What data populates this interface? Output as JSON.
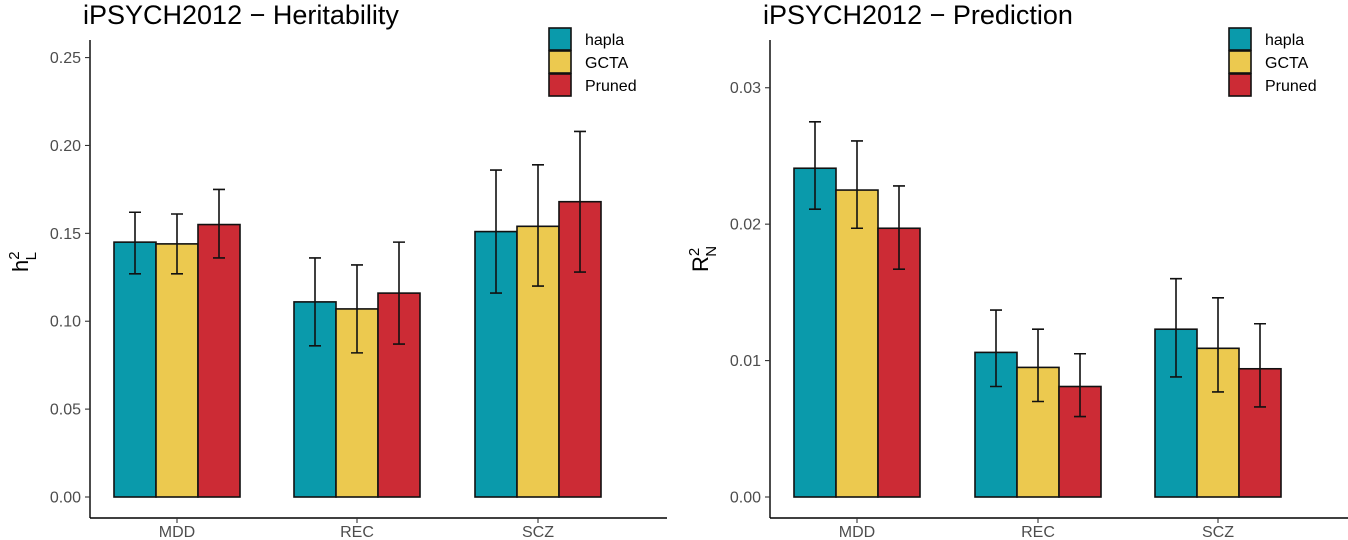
{
  "colors": {
    "hapla": "#0a9aab",
    "GCTA": "#ecc94f",
    "Pruned": "#cc2b35"
  },
  "legend": [
    "hapla",
    "GCTA",
    "Pruned"
  ],
  "chart_data": [
    {
      "type": "bar",
      "title": "iPSYCH2012 − Heritability",
      "ylabel_main": "h",
      "ylabel_sup": "2",
      "ylabel_sub": "L",
      "ylim": [
        0,
        0.26
      ],
      "yticks": [
        0,
        0.05,
        0.1,
        0.15,
        0.2,
        0.25
      ],
      "ytick_labels": [
        "0.00",
        "0.05",
        "0.10",
        "0.15",
        "0.20",
        "0.25"
      ],
      "categories": [
        "MDD",
        "REC",
        "SCZ"
      ],
      "series": [
        {
          "name": "hapla",
          "values": [
            0.145,
            0.111,
            0.151
          ],
          "lower": [
            0.127,
            0.086,
            0.116
          ],
          "upper": [
            0.162,
            0.136,
            0.186
          ]
        },
        {
          "name": "GCTA",
          "values": [
            0.144,
            0.107,
            0.154
          ],
          "lower": [
            0.127,
            0.082,
            0.12
          ],
          "upper": [
            0.161,
            0.132,
            0.189
          ]
        },
        {
          "name": "Pruned",
          "values": [
            0.155,
            0.116,
            0.168
          ],
          "lower": [
            0.136,
            0.087,
            0.128
          ],
          "upper": [
            0.175,
            0.145,
            0.208
          ]
        }
      ]
    },
    {
      "type": "bar",
      "title": "iPSYCH2012 − Prediction",
      "ylabel_main": "R",
      "ylabel_sup": "2",
      "ylabel_sub": "N",
      "ylim": [
        0,
        0.0335
      ],
      "yticks": [
        0,
        0.01,
        0.02,
        0.03
      ],
      "ytick_labels": [
        "0.00",
        "0.01",
        "0.02",
        "0.03"
      ],
      "categories": [
        "MDD",
        "REC",
        "SCZ"
      ],
      "series": [
        {
          "name": "hapla",
          "values": [
            0.0241,
            0.0106,
            0.0123
          ],
          "lower": [
            0.0211,
            0.0081,
            0.0088
          ],
          "upper": [
            0.0275,
            0.0137,
            0.016
          ]
        },
        {
          "name": "GCTA",
          "values": [
            0.0225,
            0.0095,
            0.0109
          ],
          "lower": [
            0.0197,
            0.007,
            0.0077
          ],
          "upper": [
            0.0261,
            0.0123,
            0.0146
          ]
        },
        {
          "name": "Pruned",
          "values": [
            0.0197,
            0.0081,
            0.0094
          ],
          "lower": [
            0.0167,
            0.0059,
            0.0066
          ],
          "upper": [
            0.0228,
            0.0105,
            0.0127
          ]
        }
      ]
    }
  ]
}
